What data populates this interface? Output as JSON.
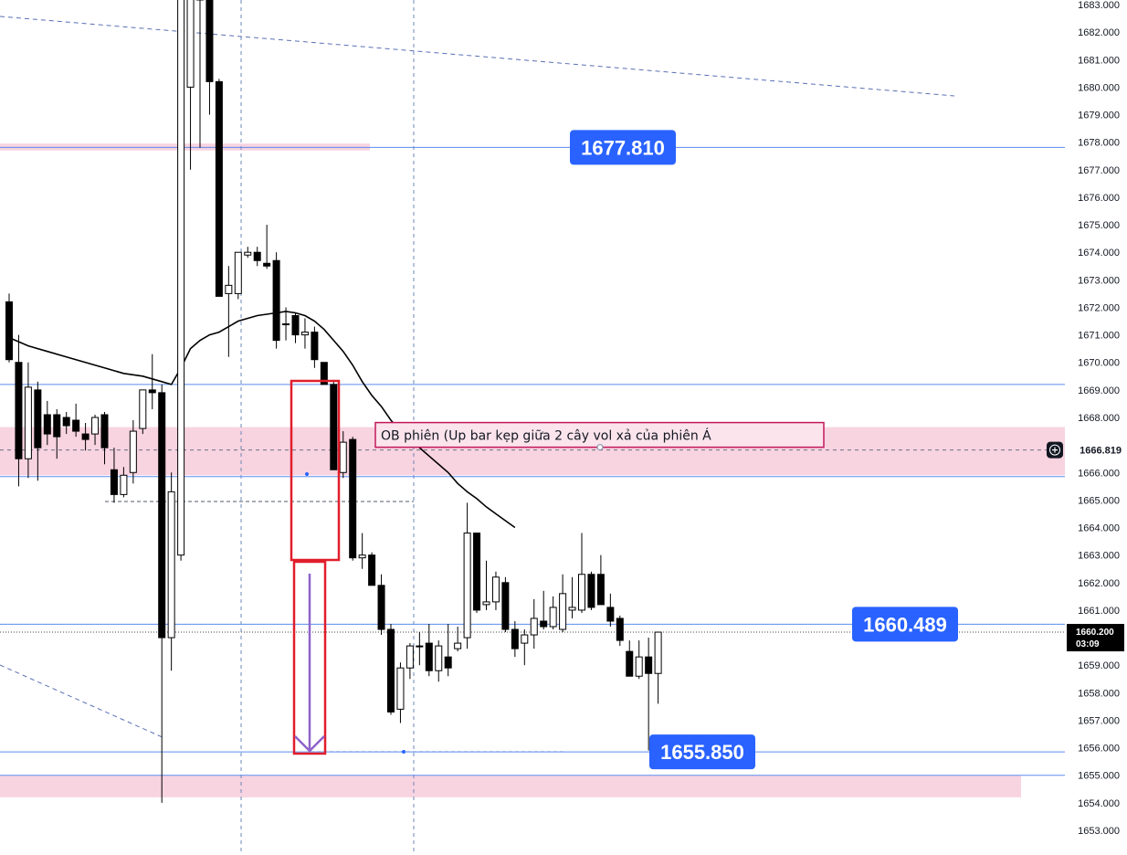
{
  "chart_data": {
    "type": "candlestick",
    "y_axis": {
      "position": "right",
      "range": [
        1652.5,
        1683.2
      ],
      "tick_labels": [
        "1653.000",
        "1654.000",
        "1655.000",
        "1656.000",
        "1657.000",
        "1658.000",
        "1659.000",
        "1660.000",
        "1661.000",
        "1662.000",
        "1663.000",
        "1664.000",
        "1665.000",
        "1666.000",
        "1667.000",
        "1668.000",
        "1669.000",
        "1670.000",
        "1671.000",
        "1672.000",
        "1673.000",
        "1674.000",
        "1675.000",
        "1676.000",
        "1677.000",
        "1678.000",
        "1679.000",
        "1680.000",
        "1681.000",
        "1682.000",
        "1683.000"
      ]
    },
    "grid": false,
    "colors": {
      "bull_body": "#ffffff",
      "bear_body": "#000000",
      "wick": "#000000",
      "price_line": "#5b8def",
      "zone_fill": "#f8d3e0",
      "box_stroke": "#e01e2b",
      "arrow": "#8e63c9",
      "badge": "#2962ff",
      "ma_line": "#000000",
      "text": "#131722"
    },
    "candles": [
      {
        "o": 1672.2,
        "h": 1672.5,
        "l": 1670.0,
        "c": 1670.1
      },
      {
        "o": 1670.0,
        "h": 1671.0,
        "l": 1665.5,
        "c": 1666.5
      },
      {
        "o": 1666.5,
        "h": 1670.0,
        "l": 1665.8,
        "c": 1669.1
      },
      {
        "o": 1669.0,
        "h": 1669.3,
        "l": 1665.7,
        "c": 1666.9
      },
      {
        "o": 1668.1,
        "h": 1668.6,
        "l": 1667.0,
        "c": 1667.4
      },
      {
        "o": 1668.1,
        "h": 1668.3,
        "l": 1666.5,
        "c": 1667.3
      },
      {
        "o": 1668.0,
        "h": 1668.2,
        "l": 1667.4,
        "c": 1667.7
      },
      {
        "o": 1667.9,
        "h": 1668.5,
        "l": 1667.3,
        "c": 1667.5
      },
      {
        "o": 1667.4,
        "h": 1667.8,
        "l": 1666.8,
        "c": 1667.2
      },
      {
        "o": 1667.4,
        "h": 1668.1,
        "l": 1667.0,
        "c": 1668.0
      },
      {
        "o": 1668.1,
        "h": 1668.2,
        "l": 1666.3,
        "c": 1666.9
      },
      {
        "o": 1666.1,
        "h": 1666.9,
        "l": 1664.9,
        "c": 1665.2
      },
      {
        "o": 1665.2,
        "h": 1666.2,
        "l": 1665.1,
        "c": 1665.9
      },
      {
        "o": 1666.0,
        "h": 1667.9,
        "l": 1665.6,
        "c": 1667.5
      },
      {
        "o": 1667.6,
        "h": 1669.0,
        "l": 1667.4,
        "c": 1669.0
      },
      {
        "o": 1669.0,
        "h": 1670.3,
        "l": 1668.3,
        "c": 1668.9
      },
      {
        "o": 1668.9,
        "h": 1669.2,
        "l": 1654.0,
        "c": 1660.0
      },
      {
        "o": 1660.0,
        "h": 1666.0,
        "l": 1658.8,
        "c": 1665.3
      },
      {
        "o": 1663.0,
        "h": 1683.2,
        "l": 1662.8,
        "c": 1683.2
      },
      {
        "o": 1680.0,
        "h": 1683.2,
        "l": 1677.0,
        "c": 1683.2
      },
      {
        "o": 1683.2,
        "h": 1683.2,
        "l": 1677.8,
        "c": 1683.2
      },
      {
        "o": 1683.2,
        "h": 1683.2,
        "l": 1679.0,
        "c": 1680.2
      },
      {
        "o": 1680.2,
        "h": 1680.3,
        "l": 1672.4,
        "c": 1672.4
      },
      {
        "o": 1672.5,
        "h": 1673.5,
        "l": 1670.2,
        "c": 1672.8
      },
      {
        "o": 1672.5,
        "h": 1674.0,
        "l": 1672.3,
        "c": 1674.0
      },
      {
        "o": 1673.9,
        "h": 1674.2,
        "l": 1673.8,
        "c": 1674.0
      },
      {
        "o": 1674.0,
        "h": 1674.2,
        "l": 1673.5,
        "c": 1673.7
      },
      {
        "o": 1673.6,
        "h": 1675.0,
        "l": 1673.4,
        "c": 1673.5
      },
      {
        "o": 1673.7,
        "h": 1674.0,
        "l": 1670.5,
        "c": 1670.8
      },
      {
        "o": 1671.4,
        "h": 1672.0,
        "l": 1670.8,
        "c": 1671.4
      },
      {
        "o": 1671.7,
        "h": 1671.8,
        "l": 1670.7,
        "c": 1671.0
      },
      {
        "o": 1671.0,
        "h": 1671.6,
        "l": 1670.5,
        "c": 1671.1
      },
      {
        "o": 1671.1,
        "h": 1671.3,
        "l": 1669.8,
        "c": 1670.1
      },
      {
        "o": 1670.0,
        "h": 1670.0,
        "l": 1669.2,
        "c": 1669.2
      },
      {
        "o": 1669.2,
        "h": 1669.3,
        "l": 1666.1,
        "c": 1666.1
      },
      {
        "o": 1666.0,
        "h": 1667.5,
        "l": 1665.8,
        "c": 1667.1
      },
      {
        "o": 1667.2,
        "h": 1667.3,
        "l": 1662.8,
        "c": 1662.9
      },
      {
        "o": 1662.9,
        "h": 1663.8,
        "l": 1662.5,
        "c": 1663.0
      },
      {
        "o": 1663.0,
        "h": 1663.1,
        "l": 1661.9,
        "c": 1661.9
      },
      {
        "o": 1661.9,
        "h": 1662.3,
        "l": 1660.1,
        "c": 1660.3
      },
      {
        "o": 1660.3,
        "h": 1660.5,
        "l": 1657.2,
        "c": 1657.3
      },
      {
        "o": 1657.4,
        "h": 1659.1,
        "l": 1656.9,
        "c": 1658.9
      },
      {
        "o": 1658.9,
        "h": 1659.8,
        "l": 1658.5,
        "c": 1659.7
      },
      {
        "o": 1659.7,
        "h": 1660.2,
        "l": 1659.0,
        "c": 1659.7
      },
      {
        "o": 1659.8,
        "h": 1660.5,
        "l": 1658.6,
        "c": 1658.8
      },
      {
        "o": 1658.8,
        "h": 1659.9,
        "l": 1658.4,
        "c": 1659.7
      },
      {
        "o": 1659.3,
        "h": 1660.5,
        "l": 1658.6,
        "c": 1658.9
      },
      {
        "o": 1659.6,
        "h": 1660.4,
        "l": 1659.5,
        "c": 1659.8
      },
      {
        "o": 1660.0,
        "h": 1664.9,
        "l": 1659.6,
        "c": 1663.8
      },
      {
        "o": 1663.8,
        "h": 1663.8,
        "l": 1660.9,
        "c": 1661.0
      },
      {
        "o": 1661.2,
        "h": 1662.8,
        "l": 1661.0,
        "c": 1661.3
      },
      {
        "o": 1661.3,
        "h": 1662.4,
        "l": 1661.0,
        "c": 1662.2
      },
      {
        "o": 1662.0,
        "h": 1662.2,
        "l": 1660.2,
        "c": 1660.3
      },
      {
        "o": 1660.3,
        "h": 1660.6,
        "l": 1659.3,
        "c": 1659.6
      },
      {
        "o": 1659.8,
        "h": 1660.3,
        "l": 1659.0,
        "c": 1660.1
      },
      {
        "o": 1660.1,
        "h": 1661.4,
        "l": 1659.6,
        "c": 1660.7
      },
      {
        "o": 1660.6,
        "h": 1661.7,
        "l": 1660.3,
        "c": 1660.4
      },
      {
        "o": 1660.4,
        "h": 1661.5,
        "l": 1660.3,
        "c": 1661.1
      },
      {
        "o": 1660.3,
        "h": 1662.3,
        "l": 1660.2,
        "c": 1661.6
      },
      {
        "o": 1661.0,
        "h": 1662.2,
        "l": 1660.7,
        "c": 1661.1
      },
      {
        "o": 1661.0,
        "h": 1663.8,
        "l": 1660.9,
        "c": 1662.3
      },
      {
        "o": 1662.3,
        "h": 1662.4,
        "l": 1661.0,
        "c": 1661.1
      },
      {
        "o": 1662.3,
        "h": 1663.0,
        "l": 1661.2,
        "c": 1661.2
      },
      {
        "o": 1661.1,
        "h": 1661.6,
        "l": 1660.4,
        "c": 1660.6
      },
      {
        "o": 1660.7,
        "h": 1660.8,
        "l": 1659.7,
        "c": 1659.9
      },
      {
        "o": 1659.5,
        "h": 1659.9,
        "l": 1658.6,
        "c": 1658.6
      },
      {
        "o": 1658.6,
        "h": 1659.9,
        "l": 1658.5,
        "c": 1659.3
      },
      {
        "o": 1659.3,
        "h": 1660.0,
        "l": 1655.9,
        "c": 1658.7
      },
      {
        "o": 1658.7,
        "h": 1660.2,
        "l": 1657.6,
        "c": 1660.2
      }
    ],
    "moving_average": {
      "points": [
        [
          0,
          1670.9
        ],
        [
          2,
          1670.6
        ],
        [
          4,
          1670.4
        ],
        [
          6,
          1670.2
        ],
        [
          8,
          1670.0
        ],
        [
          10,
          1669.8
        ],
        [
          12,
          1669.6
        ],
        [
          13,
          1669.55
        ],
        [
          14,
          1669.5
        ],
        [
          15,
          1669.4
        ],
        [
          16,
          1669.3
        ],
        [
          17,
          1669.2
        ],
        [
          18,
          1669.8
        ],
        [
          19,
          1670.5
        ],
        [
          20,
          1670.8
        ],
        [
          21,
          1671.0
        ],
        [
          22,
          1671.1
        ],
        [
          23,
          1671.3
        ],
        [
          24,
          1671.5
        ],
        [
          25,
          1671.6
        ],
        [
          26,
          1671.7
        ],
        [
          27,
          1671.75
        ],
        [
          28,
          1671.8
        ],
        [
          29,
          1671.85
        ],
        [
          30,
          1671.8
        ],
        [
          31,
          1671.7
        ],
        [
          32,
          1671.5
        ],
        [
          33,
          1671.2
        ],
        [
          34,
          1670.8
        ],
        [
          35,
          1670.4
        ],
        [
          36,
          1669.9
        ],
        [
          37,
          1669.3
        ],
        [
          38,
          1668.8
        ],
        [
          39,
          1668.4
        ],
        [
          40,
          1667.9
        ],
        [
          41,
          1667.5
        ],
        [
          42,
          1667.2
        ],
        [
          43,
          1666.9
        ],
        [
          44,
          1666.6
        ],
        [
          45,
          1666.3
        ],
        [
          46,
          1666.0
        ],
        [
          47,
          1665.6
        ],
        [
          48,
          1665.3
        ],
        [
          49,
          1665.05
        ],
        [
          50,
          1664.75
        ],
        [
          51,
          1664.5
        ],
        [
          52,
          1664.25
        ],
        [
          53,
          1664.0
        ]
      ]
    },
    "price_lines": [
      {
        "price": 1677.81,
        "label": "1677.810"
      },
      {
        "price": 1660.489,
        "label": "1660.489"
      },
      {
        "price": 1655.85,
        "label": "1655.850"
      }
    ],
    "plain_lines": [
      1669.2,
      1665.85,
      1655.0
    ],
    "zones": [
      {
        "from": 1665.9,
        "to": 1667.65
      },
      {
        "from": 1654.2,
        "to": 1655.0
      },
      {
        "from": 1677.7,
        "to": 1677.95
      }
    ],
    "annotation": {
      "text": "OB phiên (Up bar kẹp giữa 2 cây vol xả của phiên Á"
    },
    "crosshair": {
      "price": 1666.819,
      "label": "1666.819"
    },
    "current_price": {
      "price": 1660.2,
      "label": "1660.200",
      "countdown": "03:09"
    }
  }
}
